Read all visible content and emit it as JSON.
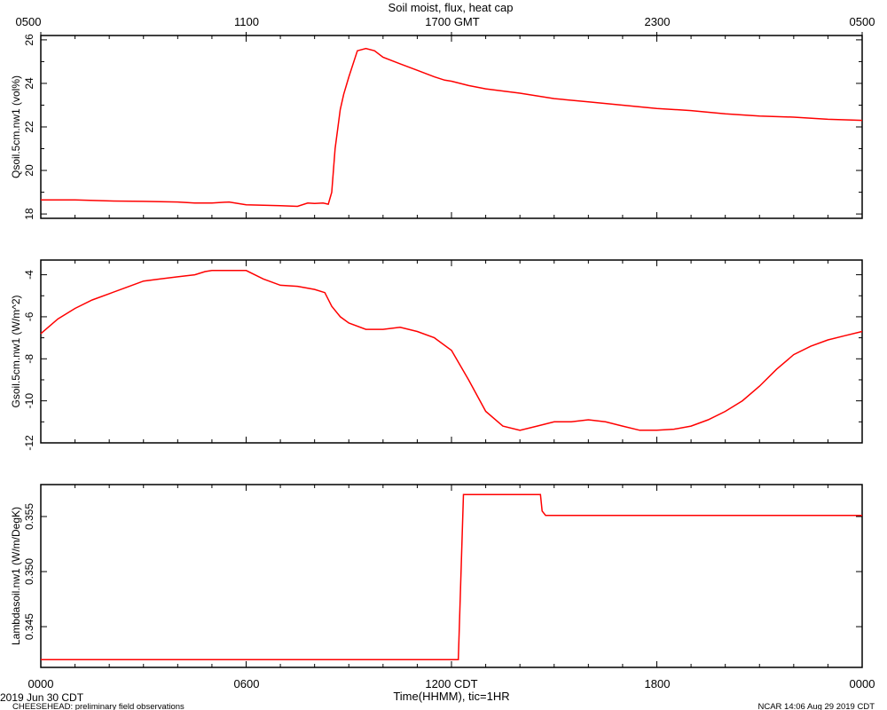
{
  "title": "Soil moist, flux, heat cap",
  "top_axis": {
    "ticks": [
      "0500",
      "1100",
      "1700 GMT",
      "2300",
      "0500"
    ]
  },
  "bottom_axis": {
    "ticks": [
      "0000",
      "0600",
      "1200 CDT",
      "1800",
      "0000"
    ],
    "label": "Time(HHMM), tic=1HR"
  },
  "footer": {
    "date": "2019 Jun 30 CDT",
    "project": "CHEESEHEAD: preliminary field observations",
    "stamp": "NCAR 14:06 Aug 29 2019 CDT"
  },
  "line_color": "#ff0000",
  "chart_data": [
    {
      "type": "line",
      "ylabel": "Qsoil.5cm.nw1 (vol%)",
      "xlim": [
        0,
        24
      ],
      "ylim": [
        17.8,
        26.2
      ],
      "yticks": [
        18,
        20,
        22,
        24,
        26
      ],
      "ytick_labels": [
        "18",
        "20",
        "22",
        "24",
        "26"
      ],
      "series": [
        {
          "x": [
            0,
            1,
            2,
            3,
            4,
            4.5,
            5,
            5.5,
            6,
            6.5,
            7,
            7.5,
            7.8,
            8,
            8.25,
            8.4,
            8.5,
            8.6,
            8.75,
            8.85,
            9,
            9.25,
            9.5,
            9.75,
            10,
            10.5,
            11,
            11.5,
            11.8,
            12,
            12.5,
            13,
            14,
            15,
            16,
            17,
            18,
            19,
            20,
            21,
            22,
            23,
            24
          ],
          "y": [
            18.65,
            18.65,
            18.6,
            18.58,
            18.55,
            18.5,
            18.5,
            18.55,
            18.42,
            18.4,
            18.38,
            18.35,
            18.5,
            18.48,
            18.5,
            18.45,
            19.0,
            21.0,
            22.8,
            23.5,
            24.3,
            25.5,
            25.6,
            25.5,
            25.2,
            24.9,
            24.6,
            24.3,
            24.15,
            24.1,
            23.9,
            23.75,
            23.55,
            23.3,
            23.15,
            23.0,
            22.85,
            22.75,
            22.6,
            22.5,
            22.45,
            22.35,
            22.3
          ]
        }
      ]
    },
    {
      "type": "line",
      "ylabel": "Gsoil.5cm.nw1 (W/m^2)",
      "xlim": [
        0,
        24
      ],
      "ylim": [
        -12,
        -3.3
      ],
      "yticks": [
        -12,
        -10,
        -8,
        -6,
        -4
      ],
      "ytick_labels": [
        "-12",
        "-10",
        "-8",
        "-6",
        "-4"
      ],
      "series": [
        {
          "x": [
            0,
            0.5,
            1,
            1.5,
            2,
            2.5,
            3,
            3.5,
            4,
            4.5,
            4.8,
            5,
            5.5,
            6,
            6.5,
            7,
            7.5,
            8,
            8.3,
            8.5,
            8.75,
            9,
            9.5,
            10,
            10.5,
            11,
            11.5,
            12,
            12.5,
            13,
            13.5,
            14,
            14.5,
            15,
            15.5,
            16,
            16.5,
            17,
            17.5,
            18,
            18.5,
            19,
            19.5,
            20,
            20.5,
            21,
            21.5,
            22,
            22.5,
            23,
            23.5,
            24
          ],
          "y": [
            -6.8,
            -6.1,
            -5.6,
            -5.2,
            -4.9,
            -4.6,
            -4.3,
            -4.2,
            -4.1,
            -4.0,
            -3.85,
            -3.8,
            -3.8,
            -3.8,
            -4.2,
            -4.5,
            -4.55,
            -4.7,
            -4.85,
            -5.5,
            -6.0,
            -6.3,
            -6.6,
            -6.6,
            -6.5,
            -6.7,
            -7.0,
            -7.6,
            -9.0,
            -10.5,
            -11.2,
            -11.4,
            -11.2,
            -11.0,
            -11.0,
            -10.9,
            -11.0,
            -11.2,
            -11.4,
            -11.4,
            -11.35,
            -11.2,
            -10.9,
            -10.5,
            -10.0,
            -9.3,
            -8.5,
            -7.8,
            -7.4,
            -7.1,
            -6.9,
            -6.7
          ]
        }
      ]
    },
    {
      "type": "line",
      "ylabel": "Lambdasoil.nw1 (W/m/DegK)",
      "xlim": [
        0,
        24
      ],
      "ylim": [
        0.3413,
        0.3579
      ],
      "yticks": [
        0.345,
        0.35,
        0.355
      ],
      "ytick_labels": [
        "0.345",
        "0.350",
        "0.355"
      ],
      "series": [
        {
          "x": [
            0,
            12.2,
            12.35,
            12.4,
            14.6,
            14.65,
            14.75,
            24
          ],
          "y": [
            0.342,
            0.342,
            0.357,
            0.357,
            0.357,
            0.3555,
            0.3551,
            0.3551
          ]
        }
      ]
    }
  ]
}
